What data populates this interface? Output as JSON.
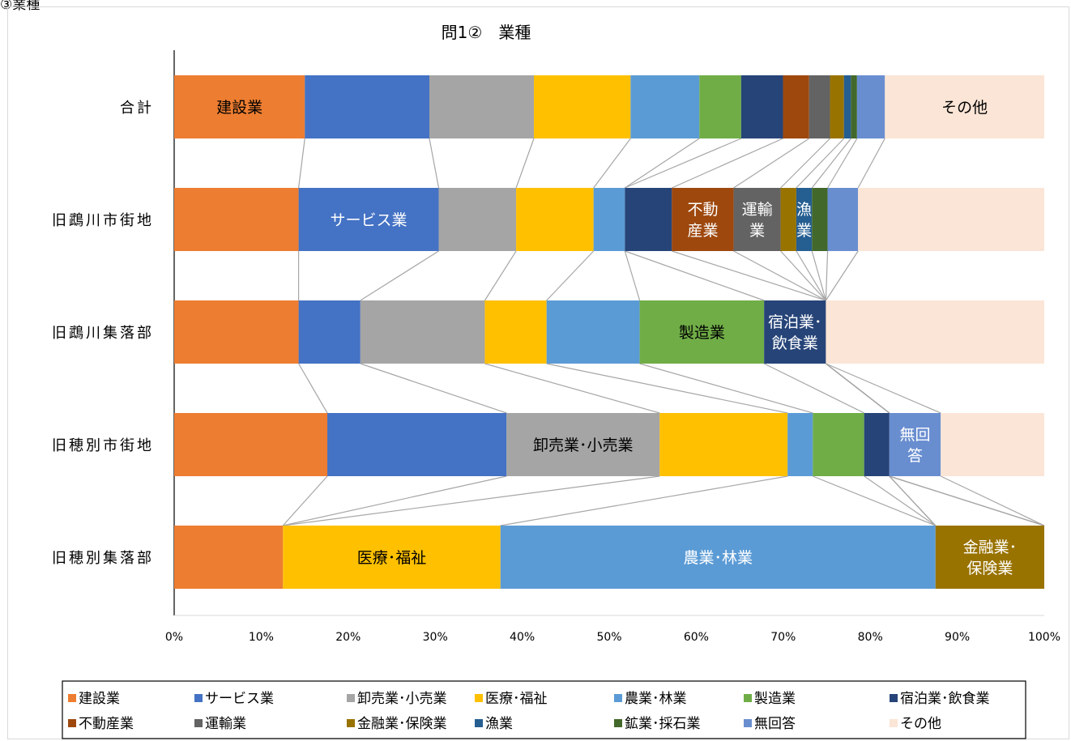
{
  "corner_label": "③業種",
  "chart_data": {
    "type": "bar",
    "orientation": "horizontal",
    "stacked": "100%",
    "title": "問1② 業種",
    "xlabel": "",
    "ylabel": "",
    "xlim": [
      0,
      100
    ],
    "x_ticks": [
      "0%",
      "10%",
      "20%",
      "30%",
      "40%",
      "50%",
      "60%",
      "70%",
      "80%",
      "90%",
      "100%"
    ],
    "grid": false,
    "series_lines": true,
    "legend_position": "bottom",
    "categories": [
      "合計",
      "旧鵡川市街地",
      "旧鵡川集落部",
      "旧穂別市街地",
      "旧穂別集落部"
    ],
    "series": [
      {
        "name": "建設業",
        "color": "#ED7D31",
        "values": [
          15.0,
          14.3,
          14.3,
          17.6,
          12.5
        ],
        "labels": [
          "建設業",
          "",
          "",
          "",
          ""
        ]
      },
      {
        "name": "サービス業",
        "color": "#4472C4",
        "values": [
          14.3,
          16.1,
          7.1,
          20.6,
          0
        ],
        "labels": [
          "",
          "サービス業",
          "",
          "",
          ""
        ]
      },
      {
        "name": "卸売業･小売業",
        "color": "#A5A5A5",
        "values": [
          12.0,
          8.9,
          14.3,
          17.6,
          0
        ],
        "labels": [
          "",
          "",
          "",
          "卸売業･小売業",
          ""
        ]
      },
      {
        "name": "医療･福祉",
        "color": "#FFC000",
        "values": [
          11.1,
          8.9,
          7.1,
          14.7,
          25.0
        ],
        "labels": [
          "",
          "",
          "",
          "",
          "医療･福祉"
        ]
      },
      {
        "name": "農業･林業",
        "color": "#5B9BD5",
        "values": [
          7.9,
          3.6,
          10.7,
          2.9,
          50.0
        ],
        "labels": [
          "",
          "",
          "",
          "",
          "農業･林業"
        ]
      },
      {
        "name": "製造業",
        "color": "#70AD47",
        "values": [
          4.8,
          0,
          14.3,
          5.9,
          0
        ],
        "labels": [
          "",
          "",
          "製造業",
          "",
          ""
        ]
      },
      {
        "name": "宿泊業･飲食業",
        "color": "#264478",
        "values": [
          4.8,
          5.4,
          7.1,
          2.9,
          0
        ],
        "labels": [
          "",
          "",
          "宿泊業･\n飲食業",
          "",
          ""
        ]
      },
      {
        "name": "不動産業",
        "color": "#9E480E",
        "values": [
          3.0,
          7.1,
          0,
          0,
          0
        ],
        "labels": [
          "",
          "不動\n産業",
          "",
          "",
          ""
        ]
      },
      {
        "name": "運輸業",
        "color": "#636363",
        "values": [
          2.4,
          5.4,
          0,
          0,
          0
        ],
        "labels": [
          "",
          "運輸\n業",
          "",
          "",
          ""
        ]
      },
      {
        "name": "金融業･保険業",
        "color": "#997300",
        "values": [
          1.6,
          1.8,
          0,
          0,
          12.5
        ],
        "labels": [
          "",
          "",
          "",
          "",
          "金融業･\n保険業"
        ]
      },
      {
        "name": "漁業",
        "color": "#255E91",
        "values": [
          0.8,
          1.8,
          0,
          0,
          0
        ],
        "labels": [
          "",
          "漁\n業",
          "",
          "",
          ""
        ]
      },
      {
        "name": "鉱業･採石業",
        "color": "#43682B",
        "values": [
          0.7,
          1.8,
          0,
          0,
          0
        ],
        "labels": [
          "",
          "",
          "",
          "",
          ""
        ]
      },
      {
        "name": "無回答",
        "color": "#698ED0",
        "values": [
          3.2,
          3.5,
          0,
          5.9,
          0
        ],
        "labels": [
          "",
          "",
          "",
          "無回\n答",
          ""
        ]
      },
      {
        "name": "その他",
        "color": "#FBE5D6",
        "values": [
          18.3,
          21.4,
          25.1,
          11.9,
          0
        ],
        "labels": [
          "その他",
          "",
          "",
          "",
          ""
        ]
      }
    ]
  }
}
